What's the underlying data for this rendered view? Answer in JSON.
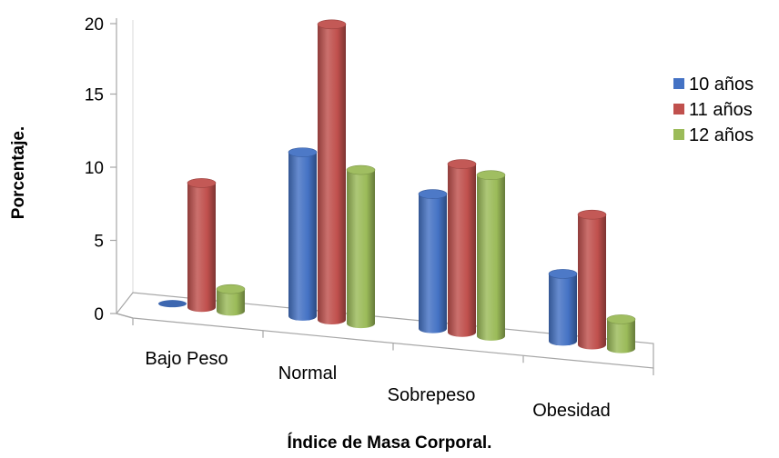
{
  "chart_data": {
    "type": "bar",
    "subtype": "3d-clustered-cylinder",
    "categories": [
      "Bajo Peso",
      "Normal",
      "Sobrepeso",
      "Obesidad"
    ],
    "series": [
      {
        "name": "10 años",
        "values": [
          0,
          11.2,
          9.2,
          4.6
        ],
        "color": "#4472C4"
      },
      {
        "name": "11 años",
        "values": [
          8.5,
          20.2,
          11.5,
          8.9
        ],
        "color": "#C0504D"
      },
      {
        "name": "12 años",
        "values": [
          1.5,
          10.5,
          11.0,
          2.0
        ],
        "color": "#9BBB59"
      }
    ],
    "xlabel": "Índice de Masa Corporal.",
    "ylabel": "Porcentaje.",
    "ylim": [
      0,
      20
    ],
    "yticks": [
      "0",
      "5",
      "10",
      "15",
      "20"
    ],
    "legend": "right",
    "grid": false
  }
}
